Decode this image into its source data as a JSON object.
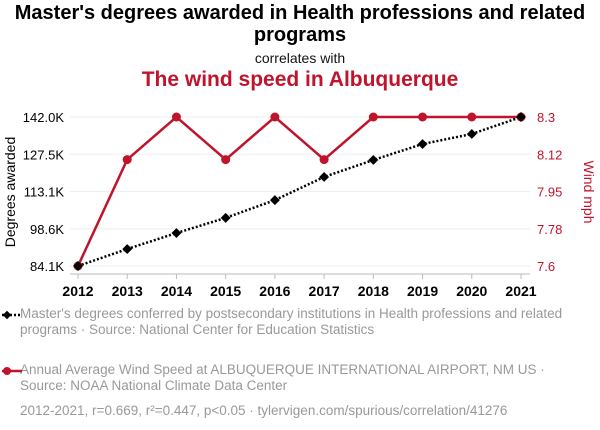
{
  "title": "Master's degrees awarded in Health professions and related programs",
  "correlates": "correlates with",
  "subtitle": "The wind speed in Albuquerque",
  "colors": {
    "red": "#c0142c",
    "black": "#000000"
  },
  "chart_data": {
    "type": "line",
    "x": [
      2012,
      2013,
      2014,
      2015,
      2016,
      2017,
      2018,
      2019,
      2020,
      2021
    ],
    "series": [
      {
        "name": "Master's degrees conferred by postsecondary institutions in Health professions and related programs · Source: National Center for Education Statistics",
        "axis": "left",
        "values": [
          84100,
          90700,
          96900,
          102800,
          109700,
          118700,
          125300,
          131500,
          135400,
          142000
        ]
      },
      {
        "name": "Annual Average Wind Speed at ALBUQUERQUE INTERNATIONAL AIRPORT, NM US · Source: NOAA National Climate Data Center",
        "axis": "right",
        "values": [
          7.6,
          8.1,
          8.3,
          8.1,
          8.3,
          8.1,
          8.3,
          8.3,
          8.3,
          8.3
        ]
      }
    ],
    "ylabel": "Degrees awarded",
    "y2label": "Wind mph",
    "ylim": [
      84100,
      142000
    ],
    "y2lim": [
      7.6,
      8.3
    ],
    "yticks": [
      "142.0K",
      "127.5K",
      "113.1K",
      "98.6K",
      "84.1K"
    ],
    "y2ticks": [
      "8.3",
      "8.12",
      "7.95",
      "7.78",
      "7.6"
    ],
    "grid": true
  },
  "footer": "2012-2021, r=0.669, r²=0.447, p<0.05 · tylervigen.com/spurious/correlation/41276"
}
